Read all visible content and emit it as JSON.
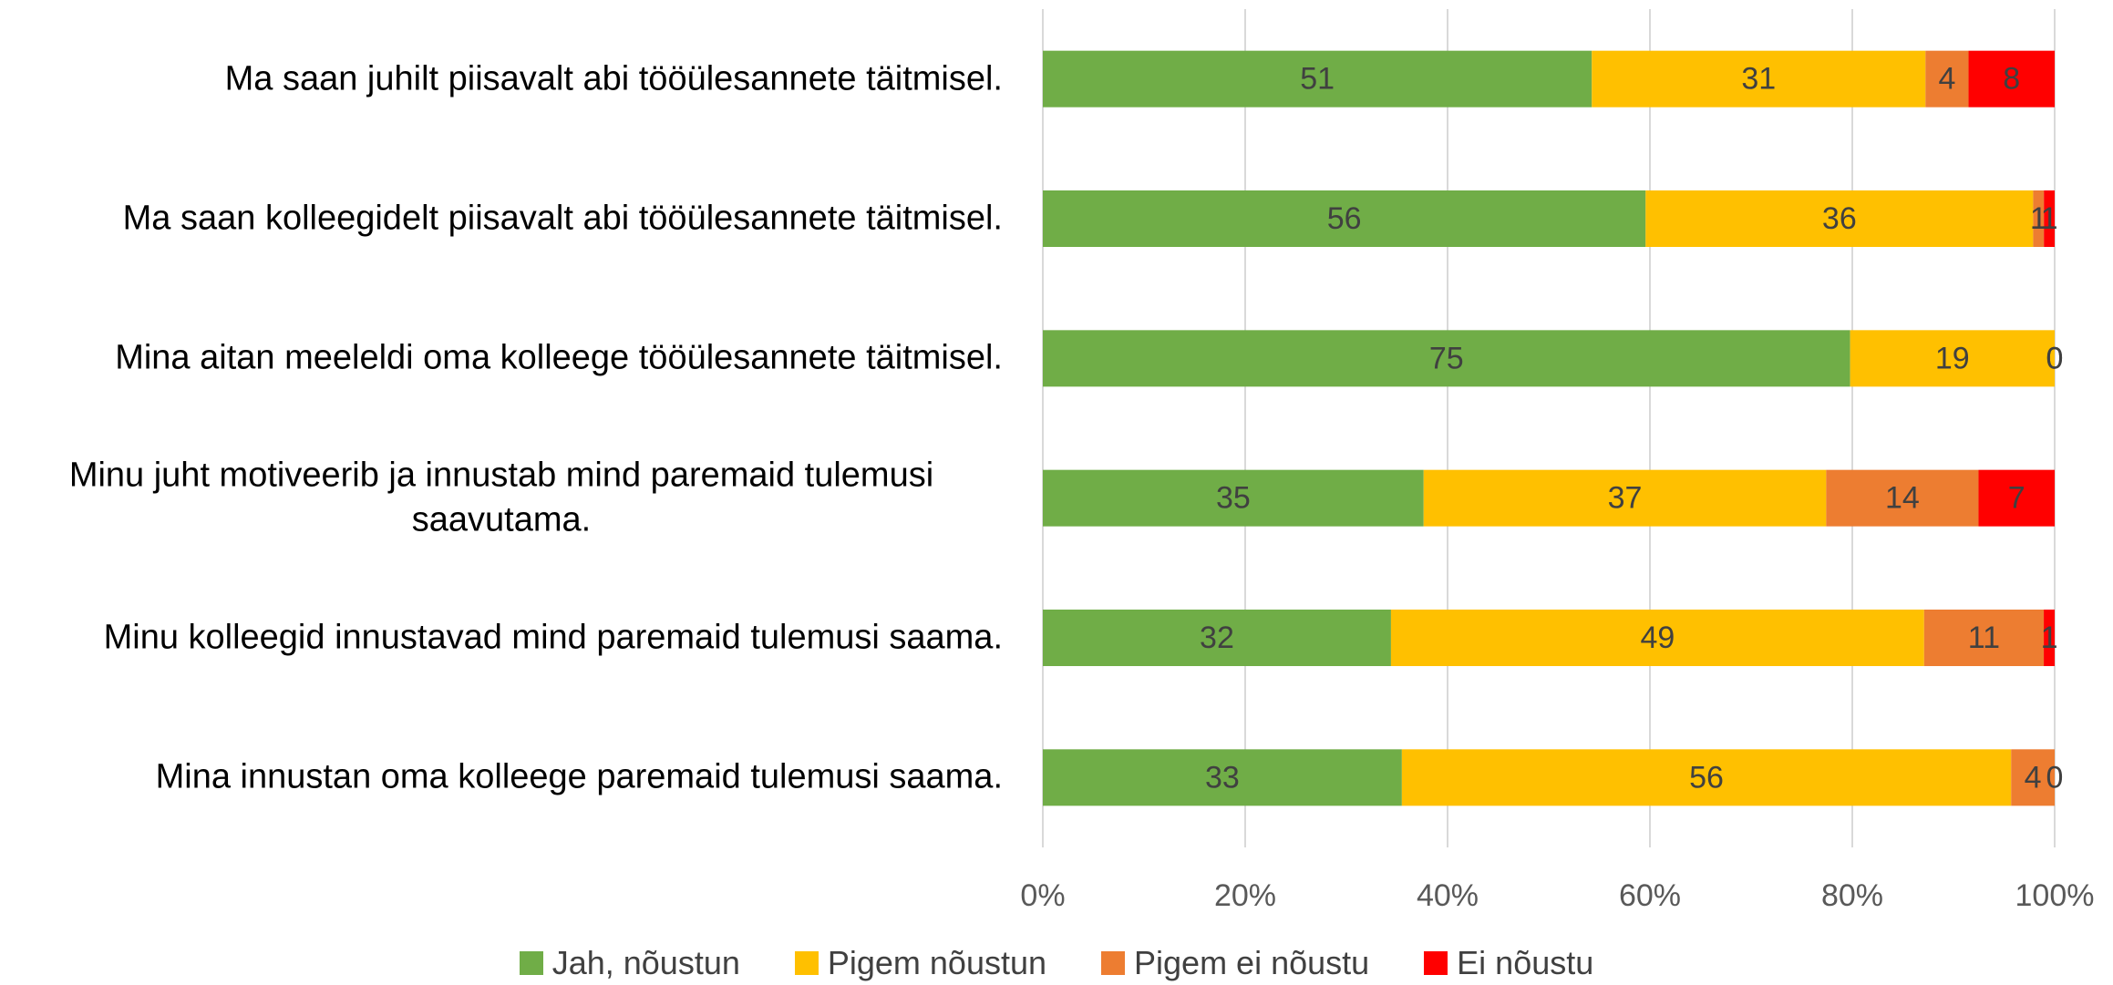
{
  "chart_data": {
    "type": "bar",
    "orientation": "horizontal",
    "stacking": "percent",
    "categories": [
      "Ma saan juhilt piisavalt abi tööülesannete täitmisel.",
      "Ma saan kolleegidelt piisavalt abi tööülesannete täitmisel.",
      "Mina aitan meeleldi oma kolleege tööülesannete täitmisel.",
      "Minu juht motiveerib ja innustab mind paremaid tulemusi saavutama.",
      "Minu kolleegid innustavad mind paremaid tulemusi saama.",
      "Mina innustan oma kolleege paremaid tulemusi saama."
    ],
    "series": [
      {
        "name": "Jah, nõustun",
        "color": "#70ad47",
        "values": [
          51,
          56,
          75,
          35,
          32,
          33
        ]
      },
      {
        "name": "Pigem nõustun",
        "color": "#ffc000",
        "values": [
          31,
          36,
          19,
          37,
          49,
          56
        ]
      },
      {
        "name": "Pigem ei nõustu",
        "color": "#ed7d31",
        "values": [
          4,
          1,
          0,
          14,
          11,
          4
        ]
      },
      {
        "name": "Ei nõustu",
        "color": "#ff0000",
        "values": [
          8,
          1,
          0,
          7,
          1,
          0
        ]
      }
    ],
    "xlim": [
      0,
      100
    ],
    "xticks": [
      {
        "value": 0,
        "label": "0%"
      },
      {
        "value": 20,
        "label": "20%"
      },
      {
        "value": 40,
        "label": "40%"
      },
      {
        "value": 60,
        "label": "60%"
      },
      {
        "value": 80,
        "label": "80%"
      },
      {
        "value": 100,
        "label": "100%"
      }
    ],
    "grid": true,
    "legend": "bottom"
  }
}
